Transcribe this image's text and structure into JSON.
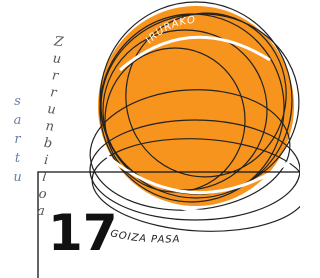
{
  "texts": {
    "top_arc": "IRURAKO",
    "bottom_arc": "GOIZA PASA",
    "left_word": "sartu",
    "right_word": "Zurrunbiloa",
    "number": "17"
  }
}
